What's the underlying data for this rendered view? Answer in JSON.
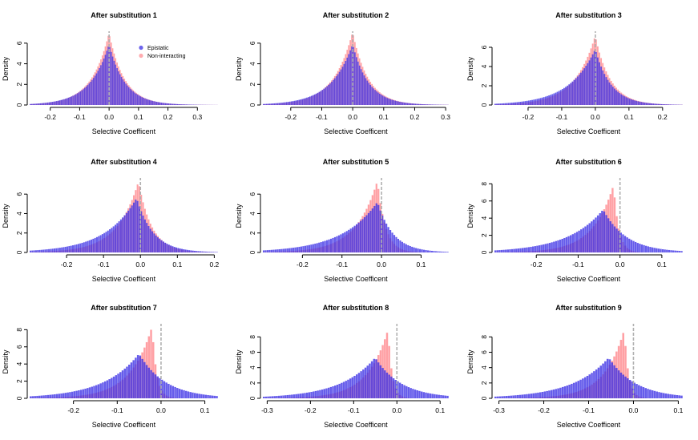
{
  "colors": {
    "epistatic": "#3b2fe6",
    "non_interacting": "#ff8f94",
    "axis": "#000000",
    "zero_line": "#b0b0b0"
  },
  "legend": {
    "labels": [
      "Epistatic",
      "Non-interacting"
    ],
    "placement": "top-right of panel 1"
  },
  "chart_data": [
    {
      "type": "bar",
      "title": "After substitution  1",
      "xlabel": "Selective Coefficent",
      "ylabel": "Density",
      "xlim": [
        -0.27,
        0.37
      ],
      "ylim": [
        0,
        7
      ],
      "xticks": [
        -0.2,
        -0.1,
        0.0,
        0.1,
        0.2,
        0.3
      ],
      "xtick_labels": [
        "-0.2",
        "-0.1",
        "0.0",
        "0.1",
        "0.2",
        "0.3"
      ],
      "yticks": [
        0,
        2,
        4,
        6
      ],
      "ytick_labels": [
        "0",
        "2",
        "4",
        "6"
      ],
      "bin_width": 0.005,
      "series": [
        {
          "name": "Epistatic",
          "peak": 0.0,
          "peak_density": 5.9,
          "left_scale": 0.065,
          "right_scale": 0.055
        },
        {
          "name": "Non-interacting",
          "peak": 0.0,
          "peak_density": 7.0,
          "left_scale": 0.06,
          "right_scale": 0.052
        }
      ]
    },
    {
      "type": "bar",
      "title": "After substitution  2",
      "xlabel": "Selective Coefficent",
      "ylabel": "Density",
      "xlim": [
        -0.29,
        0.31
      ],
      "ylim": [
        0,
        7
      ],
      "xticks": [
        -0.2,
        -0.1,
        0.0,
        0.1,
        0.2,
        0.3
      ],
      "xtick_labels": [
        "-0.2",
        "-0.1",
        "0.0",
        "0.1",
        "0.2",
        "0.3"
      ],
      "yticks": [
        0,
        2,
        4,
        6
      ],
      "ytick_labels": [
        "0",
        "2",
        "4",
        "6"
      ],
      "bin_width": 0.005,
      "series": [
        {
          "name": "Epistatic",
          "peak": 0.0,
          "peak_density": 5.9,
          "left_scale": 0.07,
          "right_scale": 0.052
        },
        {
          "name": "Non-interacting",
          "peak": 0.0,
          "peak_density": 7.1,
          "left_scale": 0.062,
          "right_scale": 0.05
        }
      ]
    },
    {
      "type": "bar",
      "title": "After substitution  3",
      "xlabel": "Selective Coefficent",
      "ylabel": "Density",
      "xlim": [
        -0.3,
        0.26
      ],
      "ylim": [
        0,
        7.5
      ],
      "xticks": [
        -0.2,
        -0.1,
        0.0,
        0.1,
        0.2
      ],
      "xtick_labels": [
        "-0.2",
        "-0.1",
        "0.0",
        "0.1",
        "0.2"
      ],
      "yticks": [
        0,
        2,
        4,
        6
      ],
      "ytick_labels": [
        "0",
        "2",
        "4",
        "6"
      ],
      "bin_width": 0.005,
      "series": [
        {
          "name": "Epistatic",
          "peak": 0.0,
          "peak_density": 5.8,
          "left_scale": 0.078,
          "right_scale": 0.047
        },
        {
          "name": "Non-interacting",
          "peak": 0.0,
          "peak_density": 7.2,
          "left_scale": 0.062,
          "right_scale": 0.045
        }
      ]
    },
    {
      "type": "bar",
      "title": "After substitution  4",
      "xlabel": "Selective Coefficent",
      "ylabel": "Density",
      "xlim": [
        -0.3,
        0.21
      ],
      "ylim": [
        0,
        7.5
      ],
      "xticks": [
        -0.2,
        -0.1,
        0.0,
        0.1,
        0.2
      ],
      "xtick_labels": [
        "-0.2",
        "-0.1",
        "0.0",
        "0.1",
        "0.2"
      ],
      "yticks": [
        0,
        2,
        4,
        6
      ],
      "ytick_labels": [
        "0",
        "2",
        "4",
        "6"
      ],
      "bin_width": 0.005,
      "series": [
        {
          "name": "Epistatic",
          "peak": -0.01,
          "peak_density": 5.6,
          "left_scale": 0.085,
          "right_scale": 0.045
        },
        {
          "name": "Non-interacting",
          "peak": -0.005,
          "peak_density": 7.3,
          "left_scale": 0.058,
          "right_scale": 0.036
        }
      ]
    },
    {
      "type": "bar",
      "title": "After substitution  5",
      "xlabel": "Selective Coefficent",
      "ylabel": "Density",
      "xlim": [
        -0.3,
        0.17
      ],
      "ylim": [
        0,
        7.5
      ],
      "xticks": [
        -0.2,
        -0.1,
        0.0,
        0.1
      ],
      "xtick_labels": [
        "-0.2",
        "-0.1",
        "0.0",
        "0.1"
      ],
      "yticks": [
        0,
        2,
        4,
        6
      ],
      "ytick_labels": [
        "0",
        "2",
        "4",
        "6"
      ],
      "bin_width": 0.005,
      "series": [
        {
          "name": "Epistatic",
          "peak": -0.01,
          "peak_density": 5.2,
          "left_scale": 0.09,
          "right_scale": 0.04
        },
        {
          "name": "Non-interacting",
          "peak": -0.01,
          "peak_density": 7.4,
          "left_scale": 0.055,
          "right_scale": 0.02
        }
      ]
    },
    {
      "type": "bar",
      "title": "After substitution  6",
      "xlabel": "Selective Coefficent",
      "ylabel": "Density",
      "xlim": [
        -0.3,
        0.15
      ],
      "ylim": [
        0,
        8.5
      ],
      "xticks": [
        -0.2,
        -0.1,
        0.0,
        0.1
      ],
      "xtick_labels": [
        "-0.2",
        "-0.1",
        "0.0",
        "0.1"
      ],
      "yticks": [
        0,
        2,
        4,
        6,
        8
      ],
      "ytick_labels": [
        "0",
        "2",
        "4",
        "6",
        "8"
      ],
      "bin_width": 0.005,
      "series": [
        {
          "name": "Epistatic",
          "peak": -0.04,
          "peak_density": 5.0,
          "left_scale": 0.085,
          "right_scale": 0.055
        },
        {
          "name": "Non-interacting",
          "peak": -0.015,
          "peak_density": 7.9,
          "left_scale": 0.05,
          "right_scale": 0.012
        }
      ]
    },
    {
      "type": "bar",
      "title": "After substitution  7",
      "xlabel": "Selective Coefficent",
      "ylabel": "Density",
      "xlim": [
        -0.3,
        0.13
      ],
      "ylim": [
        0,
        8.5
      ],
      "xticks": [
        -0.2,
        -0.1,
        0.0,
        0.1
      ],
      "xtick_labels": [
        "-0.2",
        "-0.1",
        "0.0",
        "0.1"
      ],
      "yticks": [
        0,
        2,
        4,
        6,
        8
      ],
      "ytick_labels": [
        "0",
        "2",
        "4",
        "6",
        "8"
      ],
      "bin_width": 0.005,
      "series": [
        {
          "name": "Epistatic",
          "peak": -0.05,
          "peak_density": 5.2,
          "left_scale": 0.08,
          "right_scale": 0.06
        },
        {
          "name": "Non-interacting",
          "peak": -0.02,
          "peak_density": 8.4,
          "left_scale": 0.05,
          "right_scale": 0.01
        }
      ]
    },
    {
      "type": "bar",
      "title": "After substitution  8",
      "xlabel": "Selective Coefficent",
      "ylabel": "Density",
      "xlim": [
        -0.31,
        0.12
      ],
      "ylim": [
        0,
        9.5
      ],
      "xticks": [
        -0.3,
        -0.2,
        -0.1,
        0.0,
        0.1
      ],
      "xtick_labels": [
        "-0.3",
        "-0.2",
        "-0.1",
        "0.0",
        "0.1"
      ],
      "yticks": [
        0,
        2,
        4,
        6,
        8
      ],
      "ytick_labels": [
        "0",
        "2",
        "4",
        "6",
        "8"
      ],
      "bin_width": 0.005,
      "series": [
        {
          "name": "Epistatic",
          "peak": -0.05,
          "peak_density": 5.3,
          "left_scale": 0.08,
          "right_scale": 0.06
        },
        {
          "name": "Non-interacting",
          "peak": -0.02,
          "peak_density": 9.0,
          "left_scale": 0.048,
          "right_scale": 0.009
        }
      ]
    },
    {
      "type": "bar",
      "title": "After substitution  9",
      "xlabel": "Selective Coefficent",
      "ylabel": "Density",
      "xlim": [
        -0.31,
        0.11
      ],
      "ylim": [
        0,
        9.5
      ],
      "xticks": [
        -0.3,
        -0.2,
        -0.1,
        0.0,
        0.1
      ],
      "xtick_labels": [
        "-0.3",
        "-0.2",
        "-0.1",
        "0.0",
        "0.1"
      ],
      "yticks": [
        0,
        2,
        4,
        6,
        8
      ],
      "ytick_labels": [
        "0",
        "2",
        "4",
        "6",
        "8"
      ],
      "bin_width": 0.005,
      "series": [
        {
          "name": "Epistatic",
          "peak": -0.055,
          "peak_density": 5.3,
          "left_scale": 0.08,
          "right_scale": 0.06
        },
        {
          "name": "Non-interacting",
          "peak": -0.02,
          "peak_density": 9.0,
          "left_scale": 0.045,
          "right_scale": 0.009
        }
      ]
    }
  ]
}
